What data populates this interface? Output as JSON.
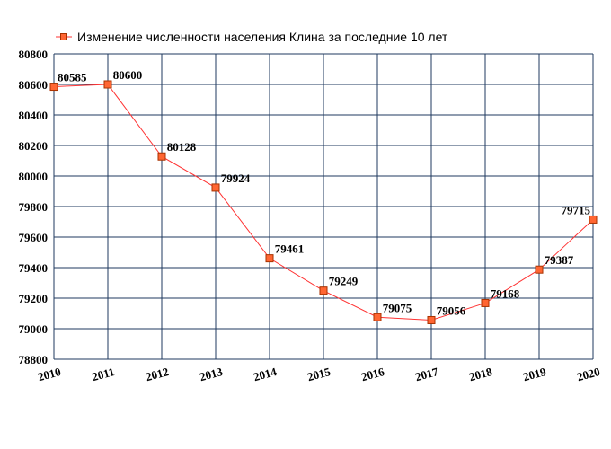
{
  "chart_data": {
    "type": "line",
    "legend": "Изменение численности населения Клина за последние 10 лет",
    "legend_position": "top-left",
    "x": [
      "2010",
      "2011",
      "2012",
      "2013",
      "2014",
      "2015",
      "2016",
      "2017",
      "2018",
      "2019",
      "2020"
    ],
    "series": [
      {
        "name": "Изменение численности населения Клина за последние 10 лет",
        "values": [
          80585,
          80600,
          80128,
          79924,
          79461,
          79249,
          79075,
          79056,
          79168,
          79387,
          79715
        ],
        "labels": [
          "80585",
          "80600",
          "80128",
          "79924",
          "79461",
          "79249",
          "79075",
          "79056",
          "79168",
          "79387",
          "79715"
        ]
      }
    ],
    "yticks": [
      "78800",
      "79000",
      "79200",
      "79400",
      "79600",
      "79800",
      "80000",
      "80200",
      "80400",
      "80600",
      "80800"
    ],
    "ylim": [
      78800,
      80800
    ],
    "grid": true,
    "colors": {
      "line": "#ff3333",
      "marker_fill": "#ff6633",
      "marker_stroke": "#a83200",
      "grid": "#1f3a5f"
    }
  }
}
